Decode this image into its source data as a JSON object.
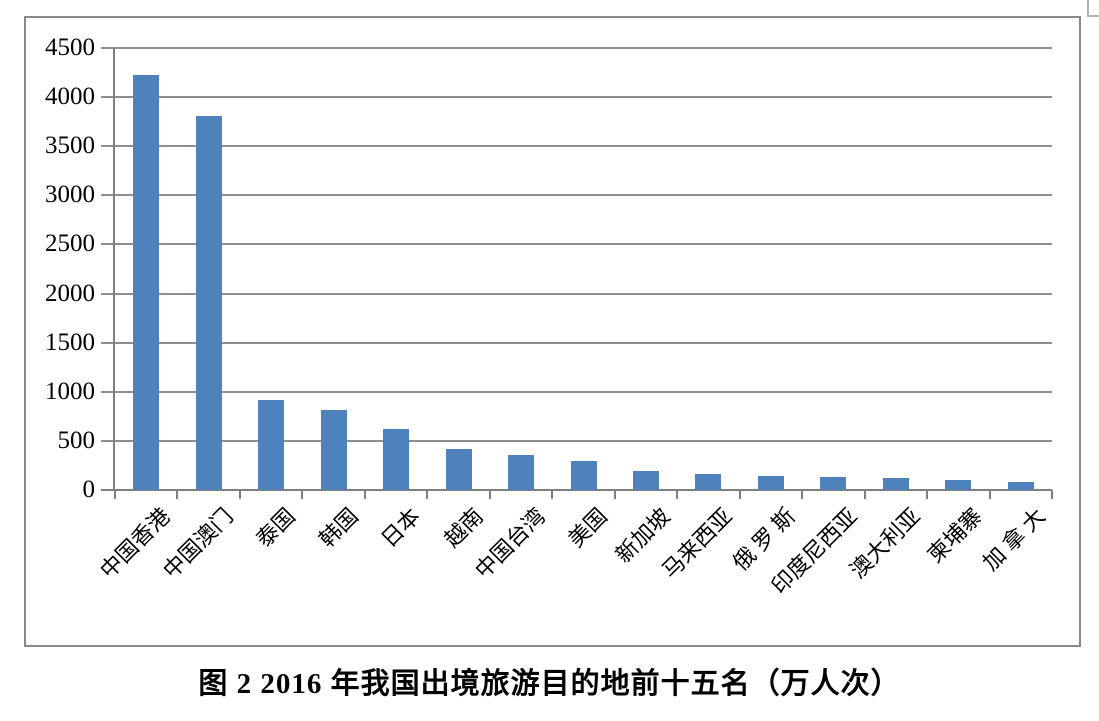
{
  "chart_data": {
    "type": "bar",
    "title": "图 2 2016 年我国出境旅游目的地前十五名（万人次）",
    "categories": [
      "中国香港",
      "中国澳门",
      "泰国",
      "韩国",
      "日本",
      "越南",
      "中国台湾",
      "美国",
      "新加坡",
      "马来西亚",
      "俄 罗 斯",
      "印度尼西亚",
      "澳大利亚",
      "柬埔寨",
      "加 拿 大"
    ],
    "values": [
      4230,
      3810,
      920,
      815,
      620,
      415,
      360,
      300,
      195,
      160,
      145,
      130,
      125,
      105,
      80
    ],
    "xlabel": "",
    "ylabel": "",
    "ylim": [
      0,
      4500
    ],
    "y_ticks": [
      0,
      500,
      1000,
      1500,
      2000,
      2500,
      3000,
      3500,
      4000,
      4500
    ],
    "grid": true,
    "legend": false,
    "x_label_rotation_deg": -45,
    "colors": {
      "bar": "#4F81BD",
      "gridline": "#8f8f8f",
      "axis": "#7f7f7f",
      "frame_border": "#898989",
      "text": "#000000",
      "cropped_corner": "#b4b4b4"
    }
  }
}
